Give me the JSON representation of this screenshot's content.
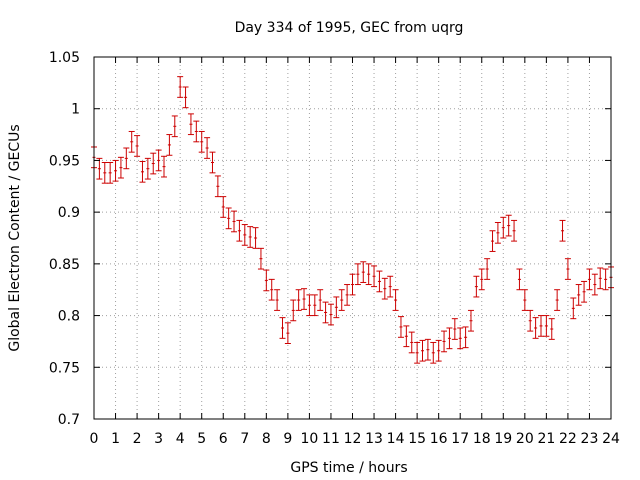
{
  "chart_data": {
    "type": "scatter",
    "title": "Day 334 of 1995, GEC from uqrg",
    "xlabel": "GPS time / hours",
    "ylabel": "Global Electron Content / GECUs",
    "xlim": [
      0,
      24
    ],
    "ylim": [
      0.7,
      1.05
    ],
    "xticks": [
      "0",
      "1",
      "2",
      "3",
      "4",
      "5",
      "6",
      "7",
      "8",
      "9",
      "10",
      "11",
      "12",
      "13",
      "14",
      "15",
      "16",
      "17",
      "18",
      "19",
      "20",
      "21",
      "22",
      "23",
      "24"
    ],
    "yticks": [
      "0.7",
      "0.75",
      "0.8",
      "0.85",
      "0.9",
      "0.95",
      "1",
      "1.05"
    ],
    "grid": true,
    "series_color": "#cc0000",
    "series": [
      {
        "x": [
          0.0,
          0.25,
          0.5,
          0.75,
          1.0,
          1.25,
          1.5,
          1.75,
          2.0,
          2.25,
          2.5,
          2.75,
          3.0,
          3.25,
          3.5,
          3.75,
          4.0,
          4.25,
          4.5,
          4.75,
          5.0,
          5.25,
          5.5,
          5.75,
          6.0,
          6.25,
          6.5,
          6.75,
          7.0,
          7.25,
          7.5,
          7.75,
          8.0,
          8.25,
          8.5,
          8.75,
          9.0,
          9.25,
          9.5,
          9.75,
          10.0,
          10.25,
          10.5,
          10.75,
          11.0,
          11.25,
          11.5,
          11.75,
          12.0,
          12.25,
          12.5,
          12.75,
          13.0,
          13.25,
          13.5,
          13.75,
          14.0,
          14.25,
          14.5,
          14.75,
          15.0,
          15.25,
          15.5,
          15.75,
          16.0,
          16.25,
          16.5,
          16.75,
          17.0,
          17.25,
          17.5,
          17.75,
          18.0,
          18.25,
          18.5,
          18.75,
          19.0,
          19.25,
          19.5,
          19.75,
          20.0,
          20.25,
          20.5,
          20.75,
          21.0,
          21.25,
          21.5,
          21.75,
          22.0,
          22.25,
          22.5,
          22.75,
          23.0,
          23.25,
          23.5,
          23.75,
          24.0
        ],
        "y": [
          0.953,
          0.942,
          0.938,
          0.938,
          0.94,
          0.943,
          0.952,
          0.968,
          0.964,
          0.939,
          0.942,
          0.947,
          0.95,
          0.944,
          0.965,
          0.983,
          1.021,
          1.011,
          0.985,
          0.978,
          0.968,
          0.962,
          0.948,
          0.925,
          0.905,
          0.894,
          0.891,
          0.882,
          0.878,
          0.876,
          0.875,
          0.855,
          0.834,
          0.825,
          0.815,
          0.788,
          0.783,
          0.805,
          0.815,
          0.816,
          0.81,
          0.81,
          0.815,
          0.803,
          0.801,
          0.808,
          0.815,
          0.82,
          0.83,
          0.84,
          0.842,
          0.84,
          0.838,
          0.833,
          0.826,
          0.828,
          0.815,
          0.789,
          0.78,
          0.774,
          0.764,
          0.766,
          0.767,
          0.764,
          0.766,
          0.775,
          0.778,
          0.787,
          0.778,
          0.779,
          0.795,
          0.828,
          0.835,
          0.845,
          0.872,
          0.88,
          0.885,
          0.887,
          0.882,
          0.835,
          0.815,
          0.795,
          0.788,
          0.79,
          0.79,
          0.787,
          0.815,
          0.882,
          0.845,
          0.807,
          0.82,
          0.823,
          0.835,
          0.83,
          0.836,
          0.835,
          0.837
        ],
        "err": 0.01
      }
    ]
  }
}
